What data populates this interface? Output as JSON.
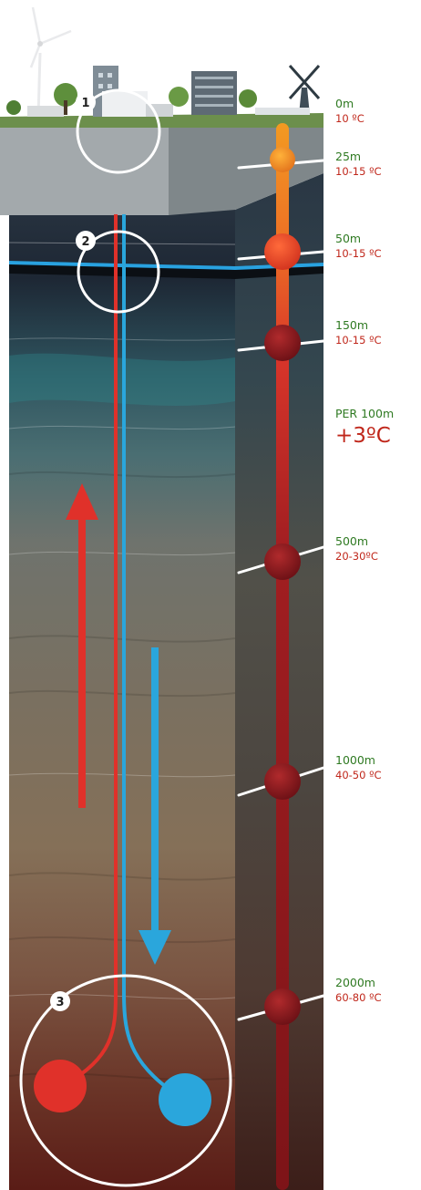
{
  "callouts": [
    "1",
    "2",
    "3"
  ],
  "gauge": [
    {
      "depth": "0m",
      "temp": "10 ºC"
    },
    {
      "depth": "25m",
      "temp": "10-15 ºC"
    },
    {
      "depth": "50m",
      "temp": "10-15 ºC"
    },
    {
      "depth": "150m",
      "temp": "10-15 ºC"
    },
    {
      "depth": "PER 100m",
      "temp": "+3ºC"
    },
    {
      "depth": "500m",
      "temp": "20-30ºC"
    },
    {
      "depth": "1000m",
      "temp": "40-50 ºC"
    },
    {
      "depth": "2000m",
      "temp": "60-80 ºC"
    }
  ],
  "colors": {
    "hot": "#e0312a",
    "cold": "#2aa6dc",
    "gauge_tube": "#8e1a1e",
    "gauge_top": "#f09022",
    "depth_text": "#2f7a22",
    "temp_text": "#c0271b",
    "aquifer": "#29a2e0"
  },
  "icons": [
    "wind-turbine-icon",
    "windmill-icon",
    "building-icon",
    "tree-icon",
    "arrow-up-icon",
    "arrow-down-icon"
  ]
}
